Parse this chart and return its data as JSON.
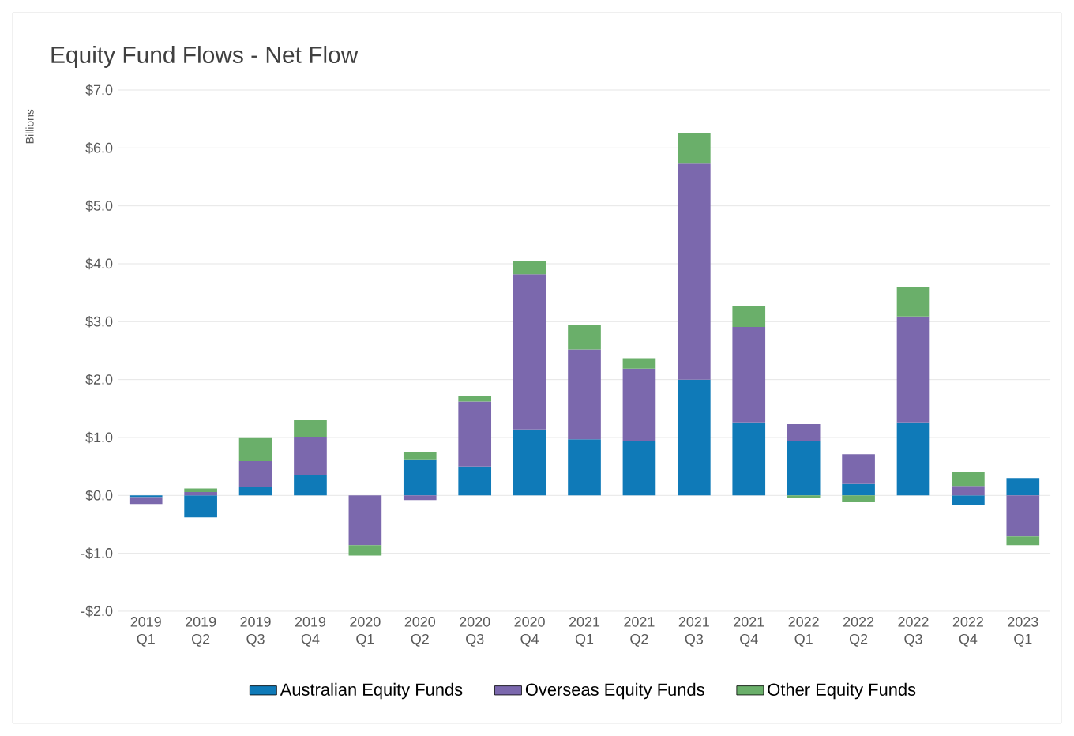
{
  "chart_data": {
    "type": "bar",
    "title": "Equity Fund Flows - Net Flow",
    "ylabel": "Billions",
    "stacked": true,
    "categories": [
      "2019 Q1",
      "2019 Q2",
      "2019 Q3",
      "2019 Q4",
      "2020 Q1",
      "2020 Q2",
      "2020 Q3",
      "2020 Q4",
      "2021 Q1",
      "2021 Q2",
      "2021 Q3",
      "2021 Q4",
      "2022 Q1",
      "2022 Q2",
      "2022 Q3",
      "2022 Q4",
      "2023 Q1"
    ],
    "series": [
      {
        "name": "Australian Equity Funds",
        "color": "#0f7ab8",
        "values": [
          -0.03,
          -0.38,
          0.14,
          0.35,
          0,
          0.62,
          0.5,
          1.14,
          0.97,
          0.94,
          2.0,
          1.25,
          0.93,
          0.2,
          1.25,
          -0.16,
          0.3
        ]
      },
      {
        "name": "Overseas Equity Funds",
        "color": "#7b68ad",
        "values": [
          -0.12,
          0.06,
          0.45,
          0.65,
          -0.86,
          -0.08,
          1.12,
          2.68,
          1.55,
          1.25,
          3.73,
          1.66,
          0.3,
          0.51,
          1.84,
          0.15,
          -0.71
        ]
      },
      {
        "name": "Other Equity Funds",
        "color": "#6aaf6a",
        "values": [
          0,
          0.06,
          0.4,
          0.3,
          -0.18,
          0.13,
          0.1,
          0.23,
          0.43,
          0.18,
          0.52,
          0.36,
          -0.05,
          -0.12,
          0.5,
          0.25,
          -0.15
        ]
      }
    ],
    "ylim": [
      -2,
      7
    ],
    "yticks": [
      {
        "value": -2,
        "label": "-$2.0"
      },
      {
        "value": -1,
        "label": "-$1.0"
      },
      {
        "value": 0,
        "label": "$0.0"
      },
      {
        "value": 1,
        "label": "$1.0"
      },
      {
        "value": 2,
        "label": "$2.0"
      },
      {
        "value": 3,
        "label": "$3.0"
      },
      {
        "value": 4,
        "label": "$4.0"
      },
      {
        "value": 5,
        "label": "$5.0"
      },
      {
        "value": 6,
        "label": "$6.0"
      },
      {
        "value": 7,
        "label": "$7.0"
      }
    ],
    "grid": "y",
    "legend": "bottom"
  }
}
